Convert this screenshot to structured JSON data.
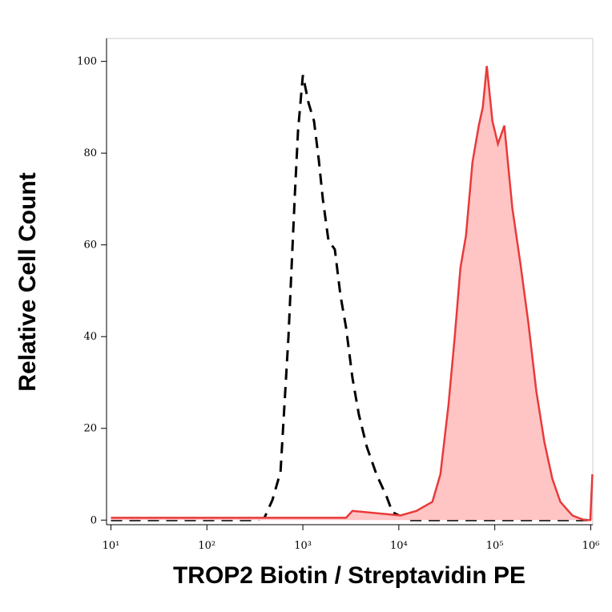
{
  "chart_data": {
    "type": "line",
    "x_label": "TROP2 Biotin / Streptavidin PE",
    "y_label": "Relative Cell Count",
    "xscale": "log",
    "xlim": [
      9,
      1050000
    ],
    "ylim": [
      -1,
      105
    ],
    "xticks": [
      {
        "value": 10,
        "label": "10¹"
      },
      {
        "value": 100,
        "label": "10²"
      },
      {
        "value": 1000,
        "label": "10³"
      },
      {
        "value": 10000,
        "label": "10⁴"
      },
      {
        "value": 100000,
        "label": "10⁵"
      },
      {
        "value": 1000000,
        "label": "10⁶"
      }
    ],
    "yticks": [
      0,
      20,
      40,
      60,
      80,
      100
    ],
    "series": [
      {
        "color": "#000000",
        "style": "dashed",
        "filled": false,
        "x": [
          10,
          316,
          398,
          482,
          585,
          708,
          826,
          891,
          1000,
          1144,
          1308,
          1468,
          1616,
          1848,
          2154,
          2465,
          2818,
          3286,
          3831,
          4642,
          5843,
          7499,
          8577,
          12590,
          1000000
        ],
        "values": [
          0,
          0,
          0.5,
          4.4,
          10.5,
          40,
          71,
          85,
          97,
          91,
          87,
          78.5,
          70,
          61,
          59,
          49,
          42,
          31,
          23,
          16,
          10,
          5,
          1.7,
          0,
          0
        ]
      },
      {
        "color": "#e83a3a",
        "fill": "#ffc4c4",
        "style": "solid",
        "filled": true,
        "x": [
          10,
          2818,
          3286,
          10400,
          15250,
          22390,
          27130,
          32860,
          38310,
          43850,
          50120,
          58480,
          68130,
          74990,
          82540,
          94410,
          107900,
          125900,
          152500,
          184800,
          223900,
          271300,
          328600,
          398100,
          482000,
          642700,
          857700,
          990000,
          1040000
        ],
        "values": [
          0.5,
          0.5,
          2,
          1,
          2,
          4,
          10,
          25,
          40,
          55,
          62,
          78,
          86,
          90,
          99,
          87,
          82,
          86,
          68,
          56,
          43,
          28,
          17,
          9,
          4,
          1,
          0,
          0,
          10
        ]
      }
    ]
  }
}
